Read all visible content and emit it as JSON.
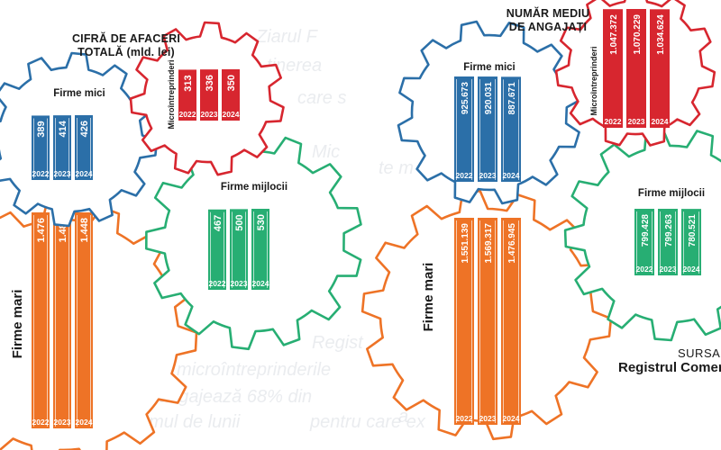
{
  "background_text": [
    "Ziarul F",
    "ținerea",
    "care s",
    "Mic",
    "Regist",
    "microîntreprinderile",
    "angajează 68% din",
    "umul de lunii",
    "pentru care ex",
    "te m",
    "a"
  ],
  "source": {
    "label": "SURSA",
    "name": "Registrul Comerțului"
  },
  "colors": {
    "micro": "#d7262f",
    "mici": "#2b6fa8",
    "mijlocii": "#27ae73",
    "mari": "#ee7326",
    "bar_text": "#ffffff",
    "micro_text": "#1a1a1a"
  },
  "chart_data": [
    {
      "type": "bar",
      "title": "CIFRĂ DE AFACERI TOTALĂ (mld. lei)",
      "title_lines": [
        "CIFRĂ DE AFACERI",
        "TOTALĂ (mld. lei)"
      ],
      "categories": [
        "2022",
        "2023",
        "2024"
      ],
      "series": [
        {
          "name": "Microîntreprinderi",
          "key": "micro",
          "values": [
            313,
            336,
            350
          ],
          "labels": [
            "313",
            "336",
            "350"
          ]
        },
        {
          "name": "Firme mici",
          "key": "mici",
          "values": [
            389,
            414,
            426
          ],
          "labels": [
            "389",
            "414",
            "426"
          ]
        },
        {
          "name": "Firme mijlocii",
          "key": "mijlocii",
          "values": [
            467,
            500,
            530
          ],
          "labels": [
            "467",
            "500",
            "530"
          ]
        },
        {
          "name": "Firme mari",
          "key": "mari",
          "values": [
            1476,
            1487,
            1448
          ],
          "labels": [
            "1.476",
            "1.487",
            "1.448"
          ]
        }
      ]
    },
    {
      "type": "bar",
      "title": "NUMĂR MEDIU DE ANGAJAȚI",
      "title_lines": [
        "NUMĂR MEDIU",
        "DE ANGAJAȚI"
      ],
      "categories": [
        "2022",
        "2023",
        "2024"
      ],
      "series": [
        {
          "name": "Microîntreprinderi",
          "key": "micro",
          "values": [
            1047372,
            1070229,
            1034624
          ],
          "labels": [
            "1.047.372",
            "1.070.229",
            "1.034.624"
          ]
        },
        {
          "name": "Firme mici",
          "key": "mici",
          "values": [
            925673,
            920031,
            887671
          ],
          "labels": [
            "925.673",
            "920.031",
            "887.671"
          ]
        },
        {
          "name": "Firme mijlocii",
          "key": "mijlocii",
          "values": [
            799428,
            799263,
            780521
          ],
          "labels": [
            "799.428",
            "799.263",
            "780.521"
          ]
        },
        {
          "name": "Firme mari",
          "key": "mari",
          "values": [
            1551139,
            1569317,
            1476945
          ],
          "labels": [
            "1.551.139",
            "1.569.317",
            "1.476.945"
          ]
        }
      ]
    }
  ]
}
